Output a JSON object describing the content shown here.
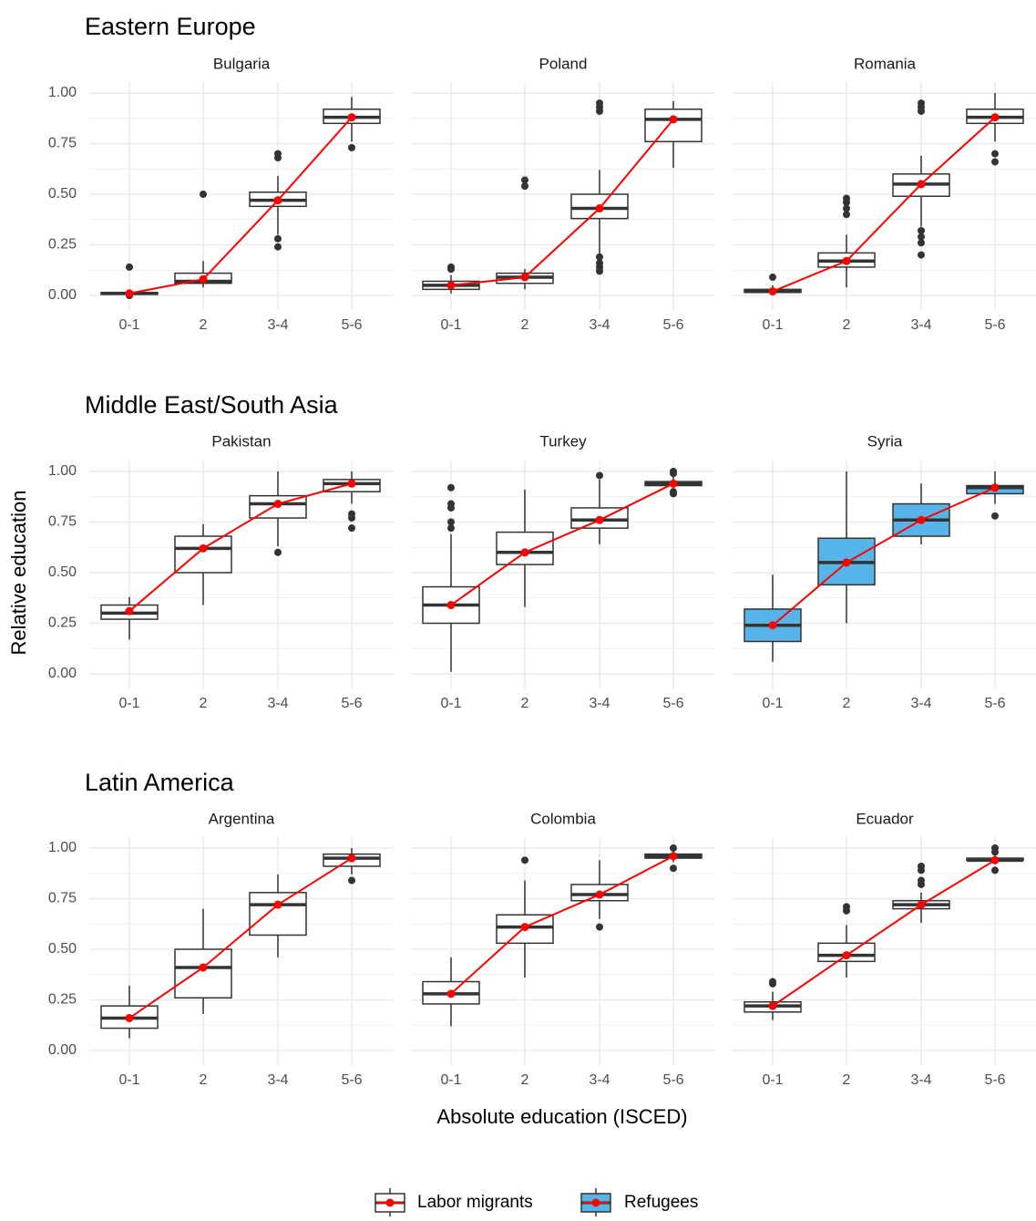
{
  "colors": {
    "labor_fill": "#ffffff",
    "refugee_fill": "#56B4E9",
    "mean_line": "#ff0000",
    "box_stroke": "#333333",
    "grid": "#ebebeb",
    "text": "#4d4d4d",
    "title": "#000000"
  },
  "axes": {
    "xlabel": "Absolute education (ISCED)",
    "ylabel": "Relative education"
  },
  "legend": {
    "position": "bottom",
    "items": [
      {
        "label": "Labor migrants",
        "fill": "#ffffff"
      },
      {
        "label": "Refugees",
        "fill": "#56B4E9"
      }
    ]
  },
  "chart_data": {
    "type": "box",
    "categories": [
      "0-1",
      "2",
      "3-4",
      "5-6"
    ],
    "y_ticks": [
      "0.00",
      "0.25",
      "0.50",
      "0.75",
      "1.00"
    ],
    "ylim": [
      0,
      1
    ],
    "grid": true,
    "sections": [
      {
        "title": "Eastern Europe",
        "panels": [
          {
            "name": "Bulgaria",
            "group": "Labor migrants",
            "means": [
              0.01,
              0.08,
              0.47,
              0.88
            ],
            "boxes": [
              {
                "q1": 0.005,
                "median": 0.01,
                "q3": 0.015,
                "wlo": 0.0,
                "whi": 0.02,
                "outliers": [
                  0.14,
                  0.0
                ]
              },
              {
                "q1": 0.06,
                "median": 0.07,
                "q3": 0.11,
                "wlo": 0.04,
                "whi": 0.17,
                "outliers": [
                  0.5
                ]
              },
              {
                "q1": 0.44,
                "median": 0.47,
                "q3": 0.51,
                "wlo": 0.3,
                "whi": 0.59,
                "outliers": [
                  0.68,
                  0.7,
                  0.28,
                  0.24
                ]
              },
              {
                "q1": 0.85,
                "median": 0.88,
                "q3": 0.92,
                "wlo": 0.76,
                "whi": 0.98,
                "outliers": [
                  0.73
                ]
              }
            ]
          },
          {
            "name": "Poland",
            "group": "Labor migrants",
            "means": [
              0.05,
              0.09,
              0.43,
              0.87
            ],
            "boxes": [
              {
                "q1": 0.03,
                "median": 0.05,
                "q3": 0.07,
                "wlo": 0.01,
                "whi": 0.1,
                "outliers": [
                  0.13,
                  0.14
                ]
              },
              {
                "q1": 0.06,
                "median": 0.09,
                "q3": 0.11,
                "wlo": 0.03,
                "whi": 0.13,
                "outliers": [
                  0.54,
                  0.57
                ]
              },
              {
                "q1": 0.38,
                "median": 0.43,
                "q3": 0.5,
                "wlo": 0.2,
                "whi": 0.62,
                "outliers": [
                  0.91,
                  0.93,
                  0.95,
                  0.19,
                  0.16,
                  0.14,
                  0.12
                ]
              },
              {
                "q1": 0.76,
                "median": 0.87,
                "q3": 0.92,
                "wlo": 0.63,
                "whi": 0.96,
                "outliers": []
              }
            ]
          },
          {
            "name": "Romania",
            "group": "Labor migrants",
            "means": [
              0.02,
              0.17,
              0.55,
              0.88
            ],
            "boxes": [
              {
                "q1": 0.015,
                "median": 0.02,
                "q3": 0.03,
                "wlo": 0.01,
                "whi": 0.05,
                "outliers": [
                  0.09
                ]
              },
              {
                "q1": 0.14,
                "median": 0.17,
                "q3": 0.21,
                "wlo": 0.04,
                "whi": 0.3,
                "outliers": [
                  0.4,
                  0.43,
                  0.46,
                  0.48
                ]
              },
              {
                "q1": 0.49,
                "median": 0.55,
                "q3": 0.6,
                "wlo": 0.34,
                "whi": 0.69,
                "outliers": [
                  0.91,
                  0.93,
                  0.95,
                  0.32,
                  0.29,
                  0.26,
                  0.2
                ]
              },
              {
                "q1": 0.85,
                "median": 0.88,
                "q3": 0.92,
                "wlo": 0.76,
                "whi": 1.0,
                "outliers": [
                  0.7,
                  0.66
                ]
              }
            ]
          }
        ]
      },
      {
        "title": "Middle East/South Asia",
        "panels": [
          {
            "name": "Pakistan",
            "group": "Labor migrants",
            "means": [
              0.31,
              0.62,
              0.84,
              0.94
            ],
            "boxes": [
              {
                "q1": 0.27,
                "median": 0.3,
                "q3": 0.34,
                "wlo": 0.17,
                "whi": 0.38,
                "outliers": []
              },
              {
                "q1": 0.5,
                "median": 0.62,
                "q3": 0.68,
                "wlo": 0.34,
                "whi": 0.74,
                "outliers": []
              },
              {
                "q1": 0.77,
                "median": 0.84,
                "q3": 0.88,
                "wlo": 0.63,
                "whi": 1.0,
                "outliers": [
                  0.6
                ]
              },
              {
                "q1": 0.9,
                "median": 0.94,
                "q3": 0.96,
                "wlo": 0.84,
                "whi": 1.0,
                "outliers": [
                  0.79,
                  0.77,
                  0.72
                ]
              }
            ]
          },
          {
            "name": "Turkey",
            "group": "Labor migrants",
            "means": [
              0.34,
              0.6,
              0.76,
              0.94
            ],
            "boxes": [
              {
                "q1": 0.25,
                "median": 0.34,
                "q3": 0.43,
                "wlo": 0.01,
                "whi": 0.69,
                "outliers": [
                  0.72,
                  0.75,
                  0.82,
                  0.84,
                  0.92
                ]
              },
              {
                "q1": 0.54,
                "median": 0.6,
                "q3": 0.7,
                "wlo": 0.33,
                "whi": 0.91,
                "outliers": []
              },
              {
                "q1": 0.72,
                "median": 0.76,
                "q3": 0.82,
                "wlo": 0.64,
                "whi": 0.96,
                "outliers": [
                  0.98
                ]
              },
              {
                "q1": 0.93,
                "median": 0.94,
                "q3": 0.95,
                "wlo": 0.91,
                "whi": 0.98,
                "outliers": [
                  0.89,
                  0.9,
                  0.99,
                  1.0
                ]
              }
            ]
          },
          {
            "name": "Syria",
            "group": "Refugees",
            "means": [
              0.24,
              0.55,
              0.76,
              0.92
            ],
            "boxes": [
              {
                "q1": 0.16,
                "median": 0.24,
                "q3": 0.32,
                "wlo": 0.06,
                "whi": 0.49,
                "outliers": []
              },
              {
                "q1": 0.44,
                "median": 0.55,
                "q3": 0.67,
                "wlo": 0.25,
                "whi": 1.0,
                "outliers": []
              },
              {
                "q1": 0.68,
                "median": 0.76,
                "q3": 0.84,
                "wlo": 0.64,
                "whi": 0.94,
                "outliers": []
              },
              {
                "q1": 0.89,
                "median": 0.92,
                "q3": 0.93,
                "wlo": 0.84,
                "whi": 1.0,
                "outliers": [
                  0.78
                ]
              }
            ]
          }
        ]
      },
      {
        "title": "Latin America",
        "panels": [
          {
            "name": "Argentina",
            "group": "Labor migrants",
            "means": [
              0.16,
              0.41,
              0.72,
              0.95
            ],
            "boxes": [
              {
                "q1": 0.11,
                "median": 0.16,
                "q3": 0.22,
                "wlo": 0.06,
                "whi": 0.32,
                "outliers": []
              },
              {
                "q1": 0.26,
                "median": 0.41,
                "q3": 0.5,
                "wlo": 0.18,
                "whi": 0.7,
                "outliers": []
              },
              {
                "q1": 0.57,
                "median": 0.72,
                "q3": 0.78,
                "wlo": 0.46,
                "whi": 0.87,
                "outliers": []
              },
              {
                "q1": 0.91,
                "median": 0.95,
                "q3": 0.97,
                "wlo": 0.87,
                "whi": 1.0,
                "outliers": [
                  0.84
                ]
              }
            ]
          },
          {
            "name": "Colombia",
            "group": "Labor migrants",
            "means": [
              0.28,
              0.61,
              0.77,
              0.96
            ],
            "boxes": [
              {
                "q1": 0.23,
                "median": 0.28,
                "q3": 0.34,
                "wlo": 0.12,
                "whi": 0.46,
                "outliers": []
              },
              {
                "q1": 0.53,
                "median": 0.61,
                "q3": 0.67,
                "wlo": 0.36,
                "whi": 0.84,
                "outliers": [
                  0.94
                ]
              },
              {
                "q1": 0.74,
                "median": 0.77,
                "q3": 0.82,
                "wlo": 0.65,
                "whi": 0.94,
                "outliers": [
                  0.61
                ]
              },
              {
                "q1": 0.95,
                "median": 0.96,
                "q3": 0.97,
                "wlo": 0.93,
                "whi": 0.99,
                "outliers": [
                  0.9,
                  1.0
                ]
              }
            ]
          },
          {
            "name": "Ecuador",
            "group": "Labor migrants",
            "means": [
              0.22,
              0.47,
              0.72,
              0.94
            ],
            "boxes": [
              {
                "q1": 0.19,
                "median": 0.22,
                "q3": 0.24,
                "wlo": 0.15,
                "whi": 0.29,
                "outliers": [
                  0.33,
                  0.34
                ]
              },
              {
                "q1": 0.44,
                "median": 0.47,
                "q3": 0.53,
                "wlo": 0.36,
                "whi": 0.62,
                "outliers": [
                  0.69,
                  0.71
                ]
              },
              {
                "q1": 0.7,
                "median": 0.72,
                "q3": 0.74,
                "wlo": 0.63,
                "whi": 0.78,
                "outliers": [
                  0.82,
                  0.84,
                  0.89,
                  0.91
                ]
              },
              {
                "q1": 0.94,
                "median": 0.94,
                "q3": 0.95,
                "wlo": 0.92,
                "whi": 0.97,
                "outliers": [
                  0.89,
                  0.98,
                  1.0
                ]
              }
            ]
          }
        ]
      }
    ]
  }
}
